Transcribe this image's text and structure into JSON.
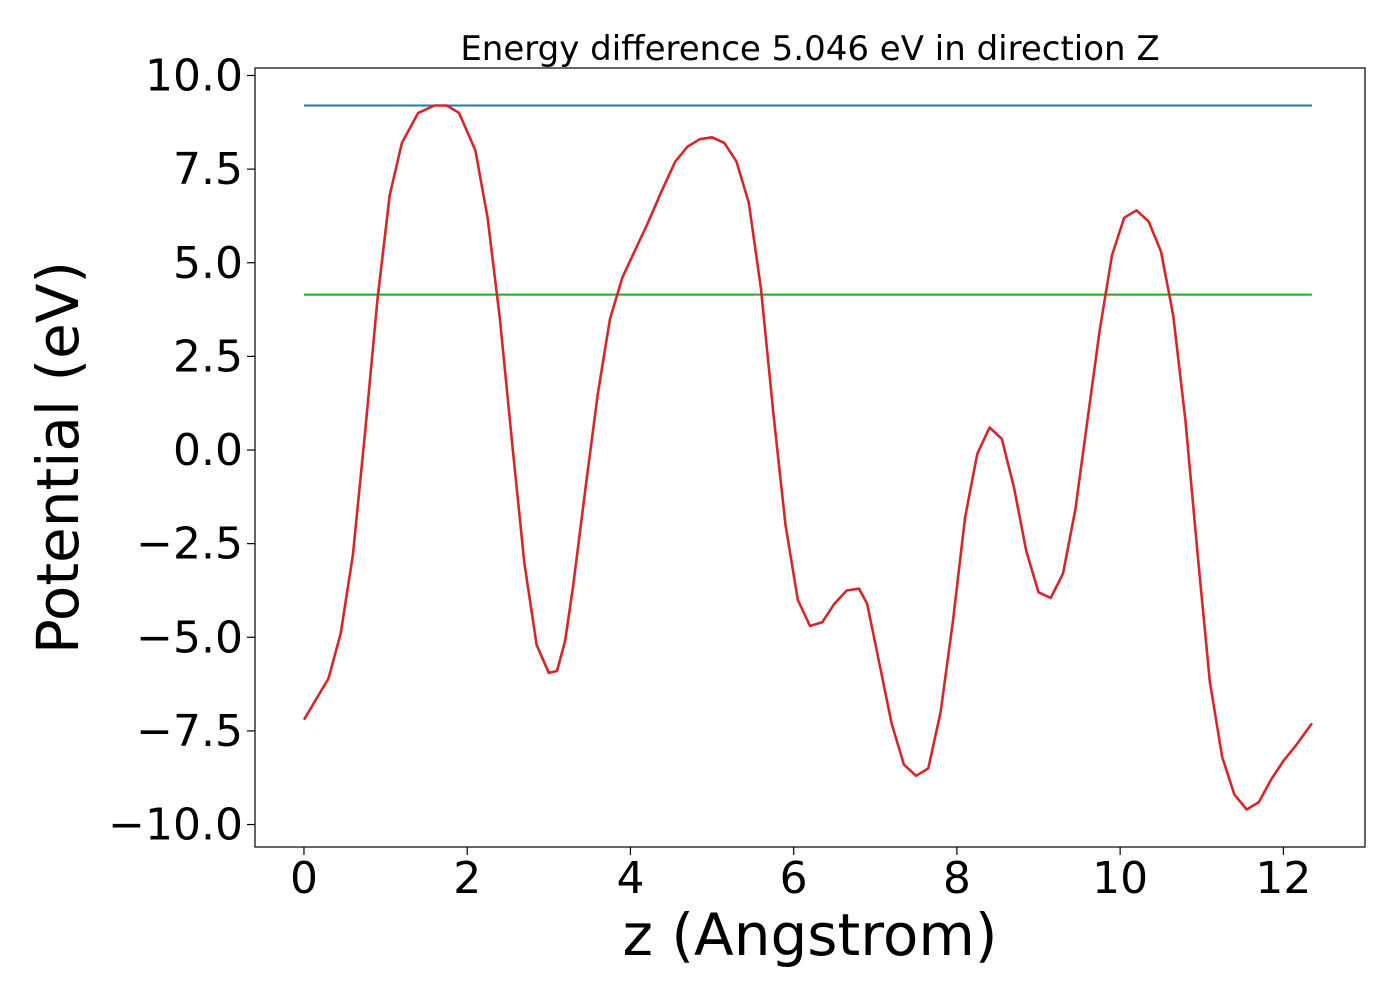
{
  "chart_data": {
    "type": "line",
    "title": "Energy difference 5.046 eV in direction Z",
    "xlabel": "z (Angstrom)",
    "ylabel": "Potential (eV)",
    "xlim": [
      -0.6,
      13.0
    ],
    "ylim": [
      -10.6,
      10.2
    ],
    "x_ticks": [
      0,
      2,
      4,
      6,
      8,
      10,
      12
    ],
    "x_tick_labels": [
      "0",
      "2",
      "4",
      "6",
      "8",
      "10",
      "12"
    ],
    "y_ticks": [
      10.0,
      7.5,
      5.0,
      2.5,
      0.0,
      -2.5,
      -5.0,
      -7.5,
      -10.0
    ],
    "y_tick_labels": [
      "10.0",
      "7.5",
      "5.0",
      "2.5",
      "0.0",
      "−2.5",
      "−5.0",
      "−7.5",
      "−10.0"
    ],
    "grid": false,
    "series": [
      {
        "color": "#1f77b4",
        "x": [
          0,
          12.35
        ],
        "y": [
          9.2,
          9.2
        ]
      },
      {
        "color": "#2ca02c",
        "x": [
          0,
          12.35
        ],
        "y": [
          4.15,
          4.15
        ]
      },
      {
        "color": "#d62728",
        "x": [
          0.0,
          0.3,
          0.45,
          0.6,
          0.75,
          0.9,
          1.05,
          1.2,
          1.4,
          1.6,
          1.75,
          1.9,
          2.1,
          2.25,
          2.4,
          2.55,
          2.7,
          2.85,
          3.0,
          3.1,
          3.2,
          3.3,
          3.45,
          3.6,
          3.75,
          3.9,
          4.05,
          4.2,
          4.4,
          4.55,
          4.7,
          4.85,
          5.0,
          5.15,
          5.3,
          5.45,
          5.6,
          5.75,
          5.9,
          6.05,
          6.2,
          6.35,
          6.5,
          6.65,
          6.8,
          6.9,
          7.05,
          7.2,
          7.35,
          7.5,
          7.65,
          7.8,
          7.95,
          8.1,
          8.25,
          8.4,
          8.55,
          8.7,
          8.85,
          9.0,
          9.15,
          9.3,
          9.45,
          9.6,
          9.75,
          9.9,
          10.05,
          10.2,
          10.35,
          10.5,
          10.65,
          10.8,
          10.95,
          11.1,
          11.25,
          11.4,
          11.55,
          11.7,
          11.85,
          12.0,
          12.15,
          12.35
        ],
        "y": [
          -7.2,
          -6.1,
          -4.9,
          -2.8,
          0.5,
          4.0,
          6.8,
          8.2,
          9.0,
          9.2,
          9.2,
          9.0,
          8.0,
          6.2,
          3.5,
          0.2,
          -3.0,
          -5.2,
          -5.95,
          -5.9,
          -5.1,
          -3.6,
          -1.0,
          1.5,
          3.5,
          4.6,
          5.3,
          6.0,
          7.0,
          7.7,
          8.1,
          8.3,
          8.35,
          8.2,
          7.7,
          6.6,
          4.3,
          1.0,
          -2.0,
          -4.0,
          -4.7,
          -4.6,
          -4.1,
          -3.75,
          -3.7,
          -4.1,
          -5.7,
          -7.3,
          -8.4,
          -8.7,
          -8.5,
          -7.0,
          -4.6,
          -1.8,
          -0.1,
          0.6,
          0.3,
          -1.0,
          -2.7,
          -3.8,
          -3.95,
          -3.3,
          -1.6,
          0.8,
          3.2,
          5.2,
          6.2,
          6.4,
          6.1,
          5.3,
          3.6,
          0.8,
          -2.8,
          -6.2,
          -8.2,
          -9.2,
          -9.6,
          -9.4,
          -8.8,
          -8.3,
          -7.9,
          -7.3
        ]
      }
    ]
  }
}
